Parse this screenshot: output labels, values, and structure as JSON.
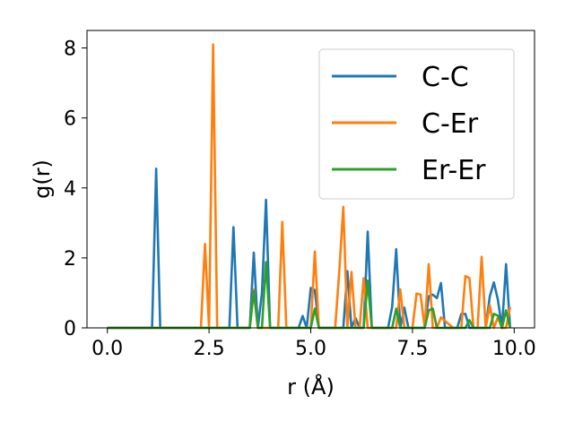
{
  "chart_data": {
    "type": "line",
    "title": "",
    "xlabel": "r (Å)",
    "ylabel": "g(r)",
    "xlim": [
      -0.5,
      10.5
    ],
    "ylim": [
      0,
      8.5
    ],
    "xticks": [
      0.0,
      2.5,
      5.0,
      7.5,
      10.0
    ],
    "xtick_labels": [
      "0.0",
      "2.5",
      "5.0",
      "7.5",
      "10.0"
    ],
    "yticks": [
      0,
      2,
      4,
      6,
      8
    ],
    "ytick_labels": [
      "0",
      "2",
      "4",
      "6",
      "8"
    ],
    "grid": false,
    "legend_position": "top-right",
    "series": [
      {
        "name": "C-C",
        "color": "#1f77b4",
        "x": [
          0.0,
          1.0,
          1.1,
          1.2,
          1.3,
          1.4,
          2.9,
          3.0,
          3.1,
          3.2,
          3.5,
          3.6,
          3.7,
          3.8,
          3.9,
          4.0,
          4.6,
          4.7,
          4.8,
          4.9,
          5.0,
          5.1,
          5.2,
          5.3,
          5.8,
          5.9,
          6.0,
          6.1,
          6.2,
          6.3,
          6.4,
          6.5,
          6.9,
          7.0,
          7.1,
          7.2,
          7.3,
          7.4,
          7.8,
          7.9,
          8.0,
          8.1,
          8.2,
          8.3,
          8.6,
          8.7,
          8.8,
          8.9,
          9.3,
          9.4,
          9.5,
          9.6,
          9.7,
          9.8,
          9.9
        ],
        "y": [
          0.0,
          0.0,
          0.0,
          4.55,
          0.0,
          0.0,
          0.0,
          0.0,
          2.88,
          0.0,
          0.0,
          2.15,
          0.0,
          1.0,
          3.66,
          0.0,
          0.0,
          0.0,
          0.34,
          0.0,
          1.14,
          1.08,
          0.0,
          0.0,
          0.0,
          1.62,
          0.0,
          0.28,
          0.0,
          0.0,
          2.75,
          0.0,
          0.0,
          0.6,
          2.25,
          0.0,
          0.58,
          0.0,
          0.0,
          0.9,
          0.95,
          0.85,
          1.28,
          0.0,
          0.0,
          0.4,
          0.4,
          0.0,
          0.0,
          0.9,
          1.3,
          0.8,
          0.0,
          1.82,
          0.0
        ]
      },
      {
        "name": "C-Er",
        "color": "#ff7f0e",
        "x": [
          0.0,
          2.2,
          2.3,
          2.4,
          2.5,
          2.6,
          2.7,
          3.5,
          3.6,
          3.7,
          3.8,
          4.1,
          4.2,
          4.3,
          4.4,
          4.9,
          5.0,
          5.1,
          5.2,
          5.5,
          5.6,
          5.7,
          5.8,
          5.9,
          6.0,
          6.1,
          6.2,
          6.3,
          6.4,
          6.5,
          7.0,
          7.1,
          7.2,
          7.3,
          7.4,
          7.5,
          7.6,
          7.7,
          7.8,
          7.9,
          8.0,
          8.1,
          8.2,
          8.5,
          8.6,
          8.7,
          8.8,
          8.9,
          9.0,
          9.1,
          9.2,
          9.3,
          9.4,
          9.5,
          9.6,
          9.7,
          9.8,
          9.9
        ],
        "y": [
          0.0,
          0.0,
          0.0,
          2.4,
          0.0,
          8.1,
          0.0,
          0.0,
          1.1,
          0.0,
          0.0,
          0.0,
          0.0,
          3.03,
          0.0,
          0.0,
          0.0,
          2.18,
          0.0,
          0.0,
          0.0,
          1.6,
          3.46,
          0.0,
          1.6,
          0.0,
          0.0,
          1.42,
          0.0,
          0.0,
          0.0,
          0.0,
          1.1,
          0.0,
          0.0,
          0.0,
          0.98,
          0.95,
          0.0,
          1.82,
          0.0,
          0.0,
          0.3,
          0.0,
          0.0,
          0.0,
          1.48,
          1.42,
          0.0,
          0.0,
          2.03,
          0.0,
          0.65,
          0.0,
          0.3,
          0.0,
          0.0,
          0.6
        ]
      },
      {
        "name": "Er-Er",
        "color": "#2ca02c",
        "x": [
          0.0,
          3.5,
          3.6,
          3.7,
          3.8,
          3.9,
          4.0,
          4.9,
          5.0,
          5.1,
          5.2,
          6.2,
          6.3,
          6.4,
          6.5,
          6.9,
          7.0,
          7.1,
          7.2,
          7.3,
          7.7,
          7.8,
          7.9,
          8.0,
          8.1,
          8.2,
          8.7,
          8.8,
          8.9,
          9.0,
          9.3,
          9.4,
          9.5,
          9.6,
          9.7,
          9.8,
          9.9
        ],
        "y": [
          0.0,
          0.0,
          1.05,
          0.0,
          0.0,
          1.88,
          0.0,
          0.0,
          0.0,
          0.55,
          0.0,
          0.0,
          0.0,
          1.35,
          0.0,
          0.0,
          0.0,
          0.55,
          0.0,
          0.0,
          0.0,
          0.0,
          0.5,
          0.55,
          0.0,
          0.0,
          0.0,
          0.0,
          0.22,
          0.0,
          0.0,
          0.0,
          0.4,
          0.35,
          0.0,
          0.5,
          0.0
        ]
      }
    ]
  }
}
